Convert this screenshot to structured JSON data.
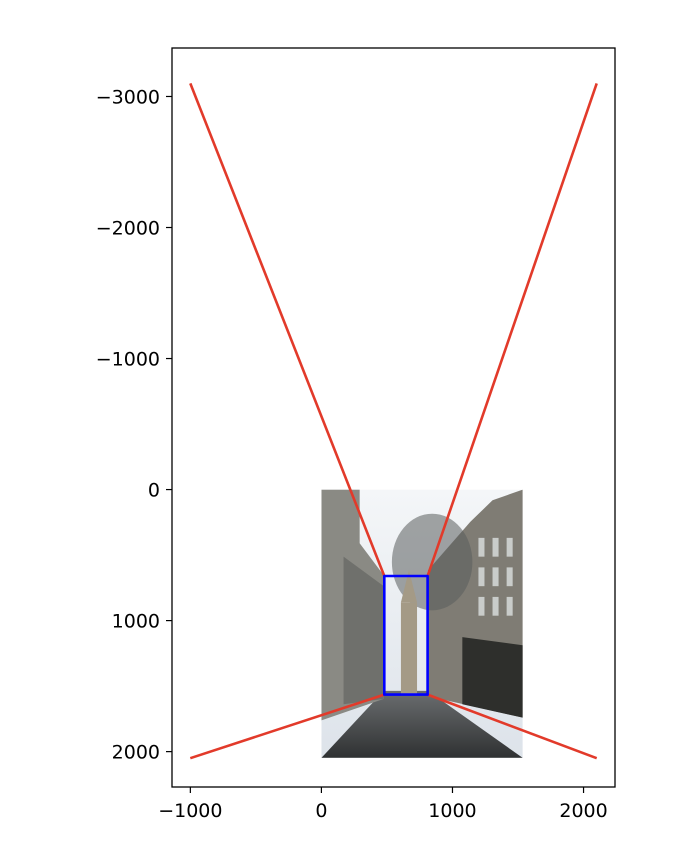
{
  "chart_data": {
    "type": "line",
    "title": "",
    "xlabel": "",
    "ylabel": "",
    "xlim": [
      -1140,
      2240
    ],
    "ylim": [
      -3370,
      2270
    ],
    "y_inverted": true,
    "grid": false,
    "x_ticks": [
      {
        "value": -1000,
        "label": "−1000"
      },
      {
        "value": 0,
        "label": "0"
      },
      {
        "value": 1000,
        "label": "1000"
      },
      {
        "value": 2000,
        "label": "2000"
      }
    ],
    "y_ticks": [
      {
        "value": -3000,
        "label": "−3000"
      },
      {
        "value": -2000,
        "label": "−2000"
      },
      {
        "value": -1000,
        "label": "−1000"
      },
      {
        "value": 0,
        "label": "0"
      },
      {
        "value": 1000,
        "label": "1000"
      },
      {
        "value": 2000,
        "label": "2000"
      }
    ],
    "background_image": {
      "description": "street photo with buildings and a church tower",
      "x": [
        0,
        1536
      ],
      "y": [
        0,
        2048
      ]
    },
    "colors": {
      "red_lines": "#e23a2a",
      "blue_box": "#0000ff",
      "axes": "#000000"
    },
    "series": [
      {
        "color": "red",
        "points": [
          [
            -1000,
            -3100
          ],
          [
            480,
            660
          ]
        ]
      },
      {
        "color": "red",
        "points": [
          [
            2100,
            -3100
          ],
          [
            810,
            660
          ]
        ]
      },
      {
        "color": "red",
        "points": [
          [
            -1000,
            2050
          ],
          [
            480,
            1565
          ]
        ]
      },
      {
        "color": "red",
        "points": [
          [
            2100,
            2050
          ],
          [
            810,
            1565
          ]
        ]
      },
      {
        "color": "blue",
        "closed": true,
        "points": [
          [
            480,
            660
          ],
          [
            810,
            660
          ],
          [
            810,
            1565
          ],
          [
            480,
            1565
          ]
        ]
      }
    ]
  }
}
